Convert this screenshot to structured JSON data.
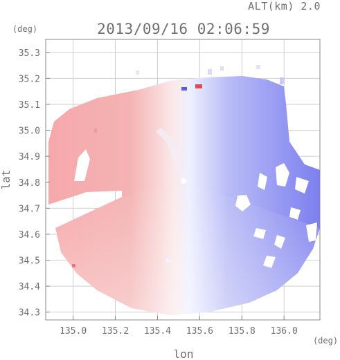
{
  "chart_data": {
    "type": "heatmap",
    "title": "2013/09/16 02:06:59",
    "subtitle": "ALT(km) 2.0",
    "xlabel": "lon",
    "ylabel": "lat",
    "x_unit": "(deg)",
    "y_unit": "(deg)",
    "xlim": [
      134.87,
      136.17
    ],
    "ylim": [
      34.27,
      35.35
    ],
    "x_ticks": [
      135.0,
      135.2,
      135.4,
      135.6,
      135.8,
      136.0
    ],
    "x_tick_labels": [
      "135.0",
      "135.2",
      "135.4",
      "135.6",
      "135.8",
      "136.0"
    ],
    "y_ticks": [
      34.3,
      34.4,
      34.5,
      34.6,
      34.7,
      34.8,
      34.9,
      35.0,
      35.1,
      35.2,
      35.3
    ],
    "y_tick_labels": [
      "34.3",
      "34.4",
      "34.5",
      "34.6",
      "34.7",
      "34.8",
      "34.9",
      "35.0",
      "35.1",
      "35.2",
      "35.3"
    ],
    "grid": true,
    "radar_center": {
      "lon": 135.52,
      "lat": 34.82
    },
    "colors": {
      "toward": "#e8363a",
      "away": "#3a3ae8",
      "zero": "#ffffff",
      "grid": "#cfcfcf",
      "axis": "#8a8a8a",
      "text": "#6f6f6f"
    }
  }
}
